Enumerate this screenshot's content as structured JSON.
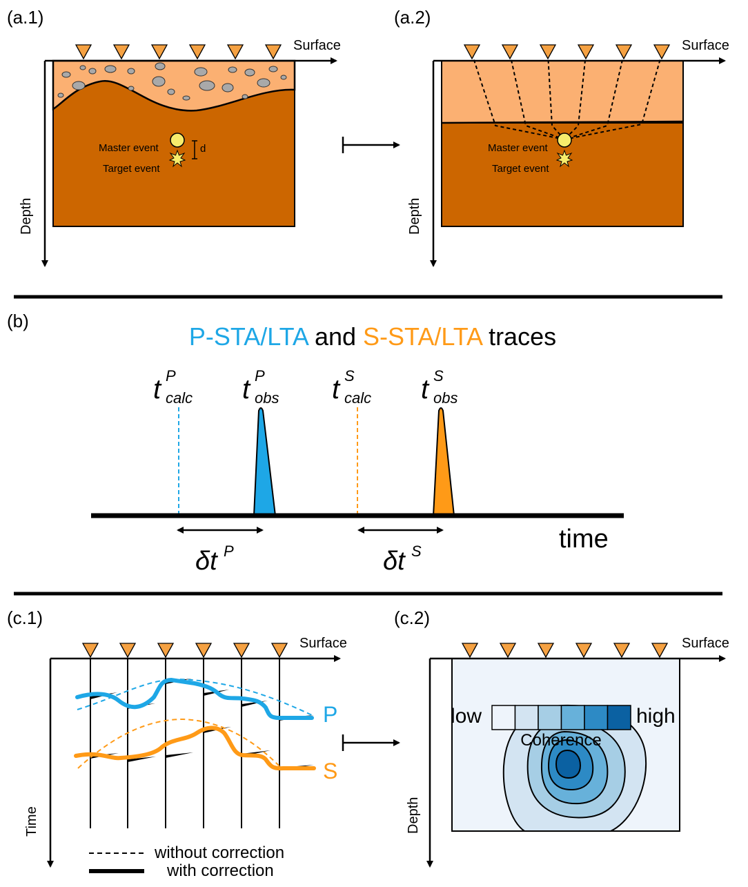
{
  "panels": {
    "a1": {
      "label": "(a.1)",
      "surface": "Surface",
      "depth": "Depth",
      "master": "Master event",
      "target": "Target event",
      "d": "d"
    },
    "a2": {
      "label": "(a.2)",
      "surface": "Surface",
      "depth": "Depth",
      "master": "Master event",
      "target": "Target event"
    },
    "b": {
      "label": "(b)",
      "title_p": "P-STA/LTA",
      "title_and": " and ",
      "title_s": "S-STA/LTA",
      "title_rest": " traces",
      "t_letter": "t",
      "sup_p": "P",
      "sup_s": "S",
      "sub_calc": "calc",
      "sub_obs": "obs",
      "delta": "δt",
      "time": "time"
    },
    "c1": {
      "label": "(c.1)",
      "surface": "Surface",
      "time_axis": "Time",
      "p": "P",
      "s": "S",
      "legend_dashed": "without correction",
      "legend_solid": "with correction"
    },
    "c2": {
      "label": "(c.2)",
      "surface": "Surface",
      "depth": "Depth",
      "low": "low",
      "high": "high",
      "coherence": "Coherence"
    }
  },
  "colors": {
    "station": "#f5a142",
    "sediment": "#fbb072",
    "bedrock": "#cc6600",
    "rock": "#a9a9a9",
    "event": "#f7ec6b",
    "p_blue": "#1ea7e6",
    "s_orange": "#ff9a17",
    "coherence_scale": [
      "#eef4fb",
      "#d3e4f2",
      "#a6cee5",
      "#67b1da",
      "#2d8ac5",
      "#0b61a2"
    ]
  }
}
